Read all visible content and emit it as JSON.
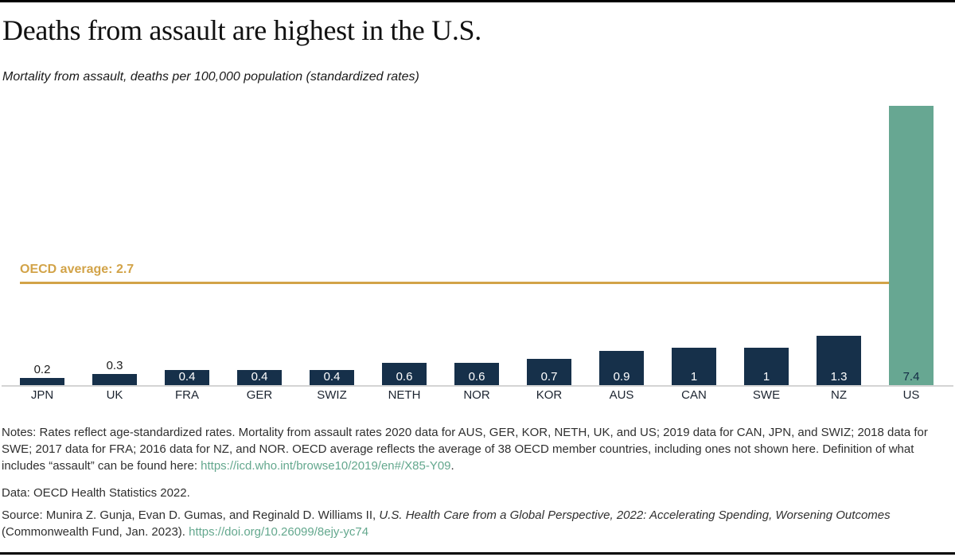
{
  "header": {
    "title": "Deaths from assault are highest in the U.S.",
    "subtitle": "Mortality from assault, deaths per 100,000 population (standardized rates)"
  },
  "chart_data": {
    "type": "bar",
    "title": "Deaths from assault are highest in the U.S.",
    "subtitle": "Mortality from assault, deaths per 100,000 population (standardized rates)",
    "categories": [
      "JPN",
      "UK",
      "FRA",
      "GER",
      "SWIZ",
      "NETH",
      "NOR",
      "KOR",
      "AUS",
      "CAN",
      "SWE",
      "NZ",
      "US"
    ],
    "values": [
      0.2,
      0.3,
      0.4,
      0.4,
      0.4,
      0.6,
      0.6,
      0.7,
      0.9,
      1,
      1,
      1.3,
      7.4
    ],
    "value_labels": [
      "0.2",
      "0.3",
      "0.4",
      "0.4",
      "0.4",
      "0.6",
      "0.6",
      "0.7",
      "0.9",
      "1",
      "1",
      "1.3",
      "7.4"
    ],
    "average_label": "OECD average: 2.7",
    "average_value": 2.7,
    "ylim": [
      0,
      7.6
    ],
    "grid": false,
    "legend": false,
    "xlabel": "",
    "ylabel": "",
    "bar_color": "#16304a",
    "highlight_index": 12,
    "highlight_color": "#67a792",
    "highlight_label_color": "#132b45",
    "average_line_color": "#d2a348",
    "axis_line_color": "#d4d4d4"
  },
  "footer": {
    "link_color": "#64a88e",
    "notes_text": "Notes: Rates reflect age-standardized rates. Mortality from assault rates 2020 data for AUS, GER, KOR, NETH, UK, and US; 2019 data for CAN, JPN, and SWIZ; 2018 data for SWE; 2017 data for FRA; 2016 data for NZ, and NOR. OECD average reflects the average of 38 OECD member countries, including ones not shown here. Definition of what includes “assault” can be found here: ",
    "notes_link": "https://icd.who.int/browse10/2019/en#/X85-Y09",
    "notes_suffix": ".",
    "data_line": "Data: OECD Health Statistics 2022.",
    "source_prefix": "Source: Munira Z. Gunja, Evan D. Gumas, and Reginald D. Williams II, ",
    "source_italic": "U.S. Health Care from a Global Perspective, 2022: Accelerating Spending, Worsening Outcomes",
    "source_mid": " (Commonwealth Fund, Jan. 2023). ",
    "source_link": "https://doi.org/10.26099/8ejy-yc74"
  }
}
